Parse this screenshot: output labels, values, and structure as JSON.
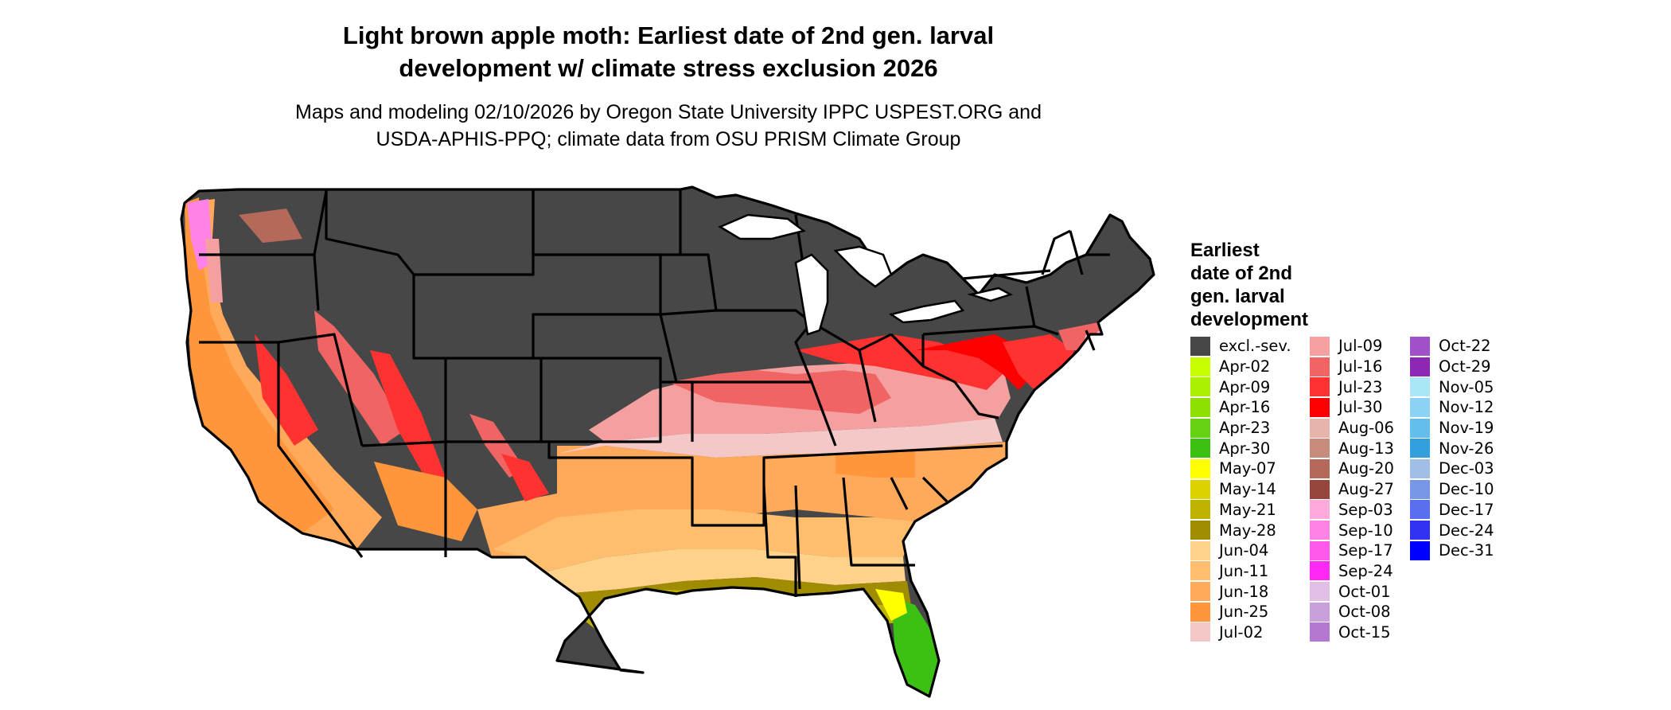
{
  "title_lines": [
    "Light brown apple moth: Earliest date of 2nd gen. larval",
    "development w/ climate stress exclusion 2026"
  ],
  "subtitle_lines": [
    "Maps and modeling 02/10/2026 by Oregon State University IPPC USPEST.ORG and",
    "USDA-APHIS-PPQ; climate data from OSU PRISM Climate Group"
  ],
  "legend": {
    "title_lines": [
      "Earliest",
      "date of 2nd",
      "gen. larval",
      "development"
    ],
    "columns": [
      [
        {
          "label": "excl.-sev.",
          "color": "#474747"
        },
        {
          "label": "Apr-02",
          "color": "#c8ff00"
        },
        {
          "label": "Apr-09",
          "color": "#aaf000"
        },
        {
          "label": "Apr-16",
          "color": "#8ee000"
        },
        {
          "label": "Apr-23",
          "color": "#66d214"
        },
        {
          "label": "Apr-30",
          "color": "#3cc014"
        },
        {
          "label": "May-07",
          "color": "#ffff00"
        },
        {
          "label": "May-14",
          "color": "#dcd200"
        },
        {
          "label": "May-21",
          "color": "#beb400"
        },
        {
          "label": "May-28",
          "color": "#a08c00"
        },
        {
          "label": "Jun-04",
          "color": "#ffd28c"
        },
        {
          "label": "Jun-11",
          "color": "#ffbe6e"
        },
        {
          "label": "Jun-18",
          "color": "#ffaa5a"
        },
        {
          "label": "Jun-25",
          "color": "#ff963c"
        },
        {
          "label": "Jul-02",
          "color": "#f5c8c8"
        }
      ],
      [
        {
          "label": "Jul-09",
          "color": "#f5a0a0"
        },
        {
          "label": "Jul-16",
          "color": "#f06464"
        },
        {
          "label": "Jul-23",
          "color": "#ff3232"
        },
        {
          "label": "Jul-30",
          "color": "#ff0000"
        },
        {
          "label": "Aug-06",
          "color": "#e6b4aa"
        },
        {
          "label": "Aug-13",
          "color": "#c88c7d"
        },
        {
          "label": "Aug-20",
          "color": "#b4695a"
        },
        {
          "label": "Aug-27",
          "color": "#96463c"
        },
        {
          "label": "Sep-03",
          "color": "#ffaadc"
        },
        {
          "label": "Sep-10",
          "color": "#ff82e6"
        },
        {
          "label": "Sep-17",
          "color": "#ff5aeb"
        },
        {
          "label": "Sep-24",
          "color": "#ff28f5"
        },
        {
          "label": "Oct-01",
          "color": "#e1bee6"
        },
        {
          "label": "Oct-08",
          "color": "#c8a0dc"
        },
        {
          "label": "Oct-15",
          "color": "#b478d2"
        }
      ],
      [
        {
          "label": "Oct-22",
          "color": "#a050c8"
        },
        {
          "label": "Oct-29",
          "color": "#8c28b4"
        },
        {
          "label": "Nov-05",
          "color": "#aae6f5"
        },
        {
          "label": "Nov-12",
          "color": "#8cd2f5"
        },
        {
          "label": "Nov-19",
          "color": "#64beeb"
        },
        {
          "label": "Nov-26",
          "color": "#32a0dc"
        },
        {
          "label": "Dec-03",
          "color": "#a0bee6"
        },
        {
          "label": "Dec-10",
          "color": "#7896e6"
        },
        {
          "label": "Dec-17",
          "color": "#5a6ef0"
        },
        {
          "label": "Dec-24",
          "color": "#3232f5"
        },
        {
          "label": "Dec-31",
          "color": "#0000ff"
        }
      ]
    ]
  }
}
